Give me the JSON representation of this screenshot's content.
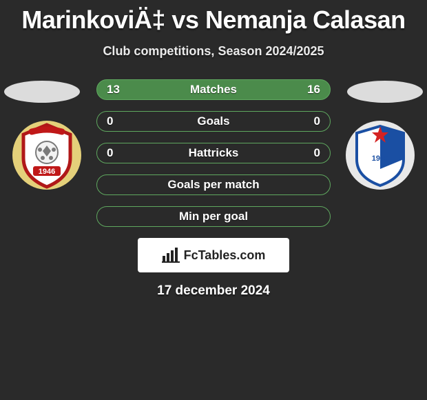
{
  "title": "MarinkoviÄ‡ vs Nemanja Calasan",
  "subtitle": "Club competitions, Season 2024/2025",
  "date": "17 december 2024",
  "footer_label": "FcTables.com",
  "rows": [
    {
      "label": "Matches",
      "left": "13",
      "right": "16",
      "border": "#5fa85f",
      "bg": "#4b8b4b"
    },
    {
      "label": "Goals",
      "left": "0",
      "right": "0",
      "border": "#5fa85f",
      "bg": "transparent"
    },
    {
      "label": "Hattricks",
      "left": "0",
      "right": "0",
      "border": "#5fa85f",
      "bg": "transparent"
    },
    {
      "label": "Goals per match",
      "left": "",
      "right": "",
      "border": "#5fa85f",
      "bg": "transparent"
    },
    {
      "label": "Min per goal",
      "left": "",
      "right": "",
      "border": "#5fa85f",
      "bg": "transparent"
    }
  ],
  "crest_left": {
    "outer": "#e4d07a",
    "shield_border": "#b01818",
    "shield_fill": "#ffffff",
    "ball": "#7a7a7a",
    "banner": "#c01818",
    "banner_text": "1946"
  },
  "crest_right": {
    "outer": "#ffffff",
    "shield_border": "#1a4fa3",
    "stripes": "#1a4fa3",
    "star": "#d42222",
    "text": "1945"
  }
}
